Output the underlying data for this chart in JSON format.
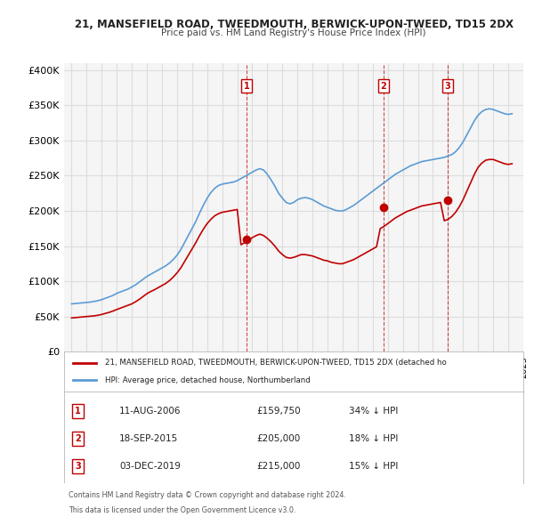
{
  "title": "21, MANSEFIELD ROAD, TWEEDMOUTH, BERWICK-UPON-TWEED, TD15 2DX",
  "subtitle": "Price paid vs. HM Land Registry's House Price Index (HPI)",
  "hpi_label": "HPI: Average price, detached house, Northumberland",
  "prop_label": "21, MANSEFIELD ROAD, TWEEDMOUTH, BERWICK-UPON-TWEED, TD15 2DX (detached ho",
  "xlabel": "",
  "ylabel": "",
  "ylim": [
    0,
    410000
  ],
  "yticks": [
    0,
    50000,
    100000,
    150000,
    200000,
    250000,
    300000,
    350000,
    400000
  ],
  "ytick_labels": [
    "£0",
    "£50K",
    "£100K",
    "£150K",
    "£200K",
    "£250K",
    "£300K",
    "£350K",
    "£400K"
  ],
  "hpi_color": "#5b9bd5",
  "prop_color": "#c00000",
  "annotation_color": "#c00000",
  "grid_color": "#dddddd",
  "bg_color": "#ffffff",
  "plot_bg_color": "#f5f5f5",
  "legend_bg": "#ffffff",
  "table_bg": "#ffffff",
  "footnote_color": "#555555",
  "sale_dates": [
    "2006-08-11",
    "2015-09-18",
    "2019-12-03"
  ],
  "sale_prices": [
    159750,
    205000,
    215000
  ],
  "sale_labels": [
    "1",
    "2",
    "3"
  ],
  "sale_info": [
    {
      "label": "1",
      "date": "11-AUG-2006",
      "price": "£159,750",
      "pct": "34% ↓ HPI"
    },
    {
      "label": "2",
      "date": "18-SEP-2015",
      "price": "£205,000",
      "pct": "18% ↓ HPI"
    },
    {
      "label": "3",
      "date": "03-DEC-2019",
      "price": "£215,000",
      "pct": "15% ↓ HPI"
    }
  ],
  "footnote1": "Contains HM Land Registry data © Crown copyright and database right 2024.",
  "footnote2": "This data is licensed under the Open Government Licence v3.0.",
  "hpi_data": {
    "dates": [
      1995.0,
      1995.25,
      1995.5,
      1995.75,
      1996.0,
      1996.25,
      1996.5,
      1996.75,
      1997.0,
      1997.25,
      1997.5,
      1997.75,
      1998.0,
      1998.25,
      1998.5,
      1998.75,
      1999.0,
      1999.25,
      1999.5,
      1999.75,
      2000.0,
      2000.25,
      2000.5,
      2000.75,
      2001.0,
      2001.25,
      2001.5,
      2001.75,
      2002.0,
      2002.25,
      2002.5,
      2002.75,
      2003.0,
      2003.25,
      2003.5,
      2003.75,
      2004.0,
      2004.25,
      2004.5,
      2004.75,
      2005.0,
      2005.25,
      2005.5,
      2005.75,
      2006.0,
      2006.25,
      2006.5,
      2006.75,
      2007.0,
      2007.25,
      2007.5,
      2007.75,
      2008.0,
      2008.25,
      2008.5,
      2008.75,
      2009.0,
      2009.25,
      2009.5,
      2009.75,
      2010.0,
      2010.25,
      2010.5,
      2010.75,
      2011.0,
      2011.25,
      2011.5,
      2011.75,
      2012.0,
      2012.25,
      2012.5,
      2012.75,
      2013.0,
      2013.25,
      2013.5,
      2013.75,
      2014.0,
      2014.25,
      2014.5,
      2014.75,
      2015.0,
      2015.25,
      2015.5,
      2015.75,
      2016.0,
      2016.25,
      2016.5,
      2016.75,
      2017.0,
      2017.25,
      2017.5,
      2017.75,
      2018.0,
      2018.25,
      2018.5,
      2018.75,
      2019.0,
      2019.25,
      2019.5,
      2019.75,
      2020.0,
      2020.25,
      2020.5,
      2020.75,
      2021.0,
      2021.25,
      2021.5,
      2021.75,
      2022.0,
      2022.25,
      2022.5,
      2022.75,
      2023.0,
      2023.25,
      2023.5,
      2023.75,
      2024.0,
      2024.25
    ],
    "values": [
      68000,
      68500,
      69000,
      69500,
      70000,
      70500,
      71500,
      72500,
      74000,
      76000,
      78000,
      80000,
      83000,
      85000,
      87000,
      89000,
      92000,
      95000,
      99000,
      103000,
      107000,
      110000,
      113000,
      116000,
      119000,
      122000,
      126000,
      131000,
      137000,
      145000,
      155000,
      165000,
      175000,
      185000,
      197000,
      208000,
      218000,
      226000,
      232000,
      236000,
      238000,
      239000,
      240000,
      241000,
      243000,
      246000,
      249000,
      252000,
      255000,
      258000,
      260000,
      258000,
      252000,
      244000,
      235000,
      225000,
      218000,
      212000,
      210000,
      212000,
      216000,
      218000,
      219000,
      218000,
      216000,
      213000,
      210000,
      207000,
      205000,
      203000,
      201000,
      200000,
      200000,
      202000,
      205000,
      208000,
      212000,
      216000,
      220000,
      224000,
      228000,
      232000,
      236000,
      240000,
      244000,
      248000,
      252000,
      255000,
      258000,
      261000,
      264000,
      266000,
      268000,
      270000,
      271000,
      272000,
      273000,
      274000,
      275000,
      276000,
      278000,
      280000,
      284000,
      290000,
      298000,
      308000,
      318000,
      328000,
      336000,
      341000,
      344000,
      345000,
      344000,
      342000,
      340000,
      338000,
      337000,
      338000
    ]
  },
  "prop_data": {
    "dates": [
      1995.0,
      1995.25,
      1995.5,
      1995.75,
      1996.0,
      1996.25,
      1996.5,
      1996.75,
      1997.0,
      1997.25,
      1997.5,
      1997.75,
      1998.0,
      1998.25,
      1998.5,
      1998.75,
      1999.0,
      1999.25,
      1999.5,
      1999.75,
      2000.0,
      2000.25,
      2000.5,
      2000.75,
      2001.0,
      2001.25,
      2001.5,
      2001.75,
      2002.0,
      2002.25,
      2002.5,
      2002.75,
      2003.0,
      2003.25,
      2003.5,
      2003.75,
      2004.0,
      2004.25,
      2004.5,
      2004.75,
      2005.0,
      2005.25,
      2005.5,
      2005.75,
      2006.0,
      2006.25,
      2006.5,
      2006.75,
      2007.0,
      2007.25,
      2007.5,
      2007.75,
      2008.0,
      2008.25,
      2008.5,
      2008.75,
      2009.0,
      2009.25,
      2009.5,
      2009.75,
      2010.0,
      2010.25,
      2010.5,
      2010.75,
      2011.0,
      2011.25,
      2011.5,
      2011.75,
      2012.0,
      2012.25,
      2012.5,
      2012.75,
      2013.0,
      2013.25,
      2013.5,
      2013.75,
      2014.0,
      2014.25,
      2014.5,
      2014.75,
      2015.0,
      2015.25,
      2015.5,
      2015.75,
      2016.0,
      2016.25,
      2016.5,
      2016.75,
      2017.0,
      2017.25,
      2017.5,
      2017.75,
      2018.0,
      2018.25,
      2018.5,
      2018.75,
      2019.0,
      2019.25,
      2019.5,
      2019.75,
      2020.0,
      2020.25,
      2020.5,
      2020.75,
      2021.0,
      2021.25,
      2021.5,
      2021.75,
      2022.0,
      2022.25,
      2022.5,
      2022.75,
      2023.0,
      2023.25,
      2023.5,
      2023.75,
      2024.0,
      2024.25
    ],
    "values": [
      48000,
      48500,
      49000,
      49500,
      50000,
      50500,
      51000,
      51800,
      53000,
      54500,
      56000,
      57800,
      60000,
      62000,
      64000,
      66000,
      68000,
      71000,
      74500,
      78500,
      82500,
      85500,
      88000,
      91000,
      94000,
      97000,
      101000,
      106000,
      112000,
      119000,
      128000,
      137000,
      146000,
      155000,
      165000,
      174000,
      182000,
      188000,
      193000,
      196000,
      198000,
      199000,
      200000,
      201000,
      202000,
      152000,
      155000,
      158000,
      162000,
      165000,
      167000,
      165000,
      161000,
      156000,
      150000,
      143000,
      138000,
      134000,
      133000,
      134000,
      136000,
      138000,
      138000,
      137000,
      136000,
      134000,
      132000,
      130000,
      129000,
      127000,
      126000,
      125000,
      125000,
      127000,
      129000,
      131000,
      134000,
      137000,
      140000,
      143000,
      146000,
      149000,
      175000,
      178000,
      182000,
      186000,
      190000,
      193000,
      196000,
      199000,
      201000,
      203000,
      205000,
      207000,
      208000,
      209000,
      210000,
      211000,
      212000,
      186000,
      188000,
      192000,
      198000,
      206000,
      216000,
      228000,
      240000,
      252000,
      262000,
      268000,
      272000,
      273000,
      273000,
      271000,
      269000,
      267000,
      266000,
      267000
    ]
  }
}
